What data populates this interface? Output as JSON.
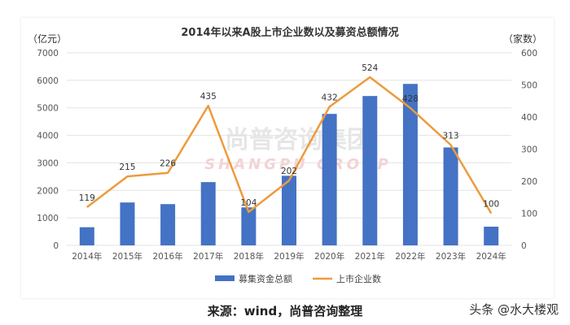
{
  "chart_data": {
    "type": "bar+line",
    "title": "2014年以来A股上市企业数以及募资总额情况",
    "categories": [
      "2014年",
      "2015年",
      "2016年",
      "2017年",
      "2018年",
      "2019年",
      "2020年",
      "2021年",
      "2022年",
      "2023年",
      "2024年"
    ],
    "series": [
      {
        "name": "募集资金总额",
        "type": "bar",
        "axis": "left",
        "color": "#4472C4",
        "values": [
          660,
          1560,
          1500,
          2300,
          1380,
          2530,
          4780,
          5430,
          5870,
          3560,
          680
        ]
      },
      {
        "name": "上市企业数",
        "type": "line",
        "axis": "right",
        "color": "#ED9B3C",
        "values": [
          119,
          215,
          226,
          435,
          104,
          202,
          432,
          524,
          428,
          313,
          100
        ]
      }
    ],
    "y_left": {
      "unit": "（亿元）",
      "min": 0,
      "max": 7000,
      "ticks": [
        0,
        1000,
        2000,
        3000,
        4000,
        5000,
        6000,
        7000
      ]
    },
    "y_right": {
      "unit": "（家数）",
      "min": 0,
      "max": 600,
      "ticks": [
        0,
        100,
        200,
        300,
        400,
        500,
        600
      ]
    },
    "grid": true,
    "legend_position": "bottom",
    "watermark": {
      "main": "尚普咨询集团",
      "sub": "SHANGPU GROUP"
    }
  },
  "caption": "来源：wind，尚普咨询整理",
  "credit": "头条 @水大楼观"
}
